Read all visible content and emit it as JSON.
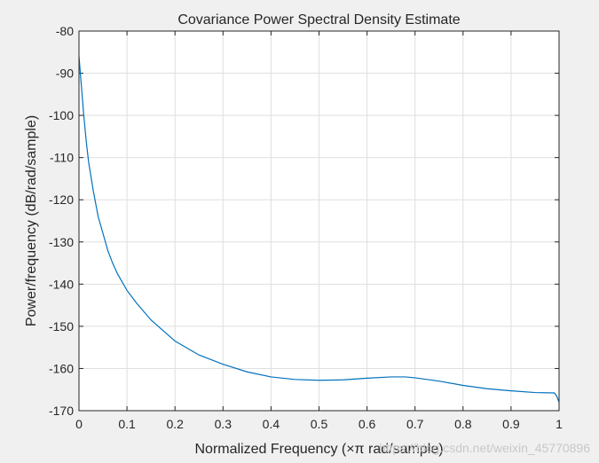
{
  "chart_data": {
    "type": "line",
    "title": "Covariance Power Spectral Density Estimate",
    "xlabel": "Normalized Frequency (×π rad/sample)",
    "ylabel": "Power/frequency (dB/rad/sample)",
    "xlim": [
      0,
      1
    ],
    "ylim": [
      -170,
      -80
    ],
    "xticks": [
      0,
      0.1,
      0.2,
      0.3,
      0.4,
      0.5,
      0.6,
      0.7,
      0.8,
      0.9,
      1
    ],
    "xtick_labels": [
      "0",
      "0.1",
      "0.2",
      "0.3",
      "0.4",
      "0.5",
      "0.6",
      "0.7",
      "0.8",
      "0.9",
      "1"
    ],
    "yticks": [
      -80,
      -90,
      -100,
      -110,
      -120,
      -130,
      -140,
      -150,
      -160,
      -170
    ],
    "ytick_labels": [
      "-80",
      "-90",
      "-100",
      "-110",
      "-120",
      "-130",
      "-140",
      "-150",
      "-160",
      "-170"
    ],
    "grid": true,
    "series": [
      {
        "color": "#0072bd",
        "x": [
          0,
          0.005,
          0.01,
          0.015,
          0.02,
          0.03,
          0.04,
          0.05,
          0.06,
          0.07,
          0.08,
          0.1,
          0.12,
          0.15,
          0.2,
          0.25,
          0.3,
          0.35,
          0.4,
          0.45,
          0.5,
          0.55,
          0.6,
          0.65,
          0.68,
          0.7,
          0.75,
          0.8,
          0.85,
          0.9,
          0.95,
          0.99,
          0.995,
          1
        ],
        "y": [
          -86,
          -93,
          -100,
          -106,
          -111,
          -118,
          -124,
          -128,
          -132,
          -135,
          -137.5,
          -141.5,
          -144.5,
          -148.5,
          -153.5,
          -156.8,
          -159,
          -160.8,
          -162,
          -162.6,
          -162.8,
          -162.7,
          -162.3,
          -162,
          -162,
          -162.2,
          -163,
          -164,
          -164.8,
          -165.3,
          -165.7,
          -165.8,
          -166.5,
          -168
        ]
      }
    ]
  },
  "watermark": "https://blog.csdn.net/weixin_45770896"
}
